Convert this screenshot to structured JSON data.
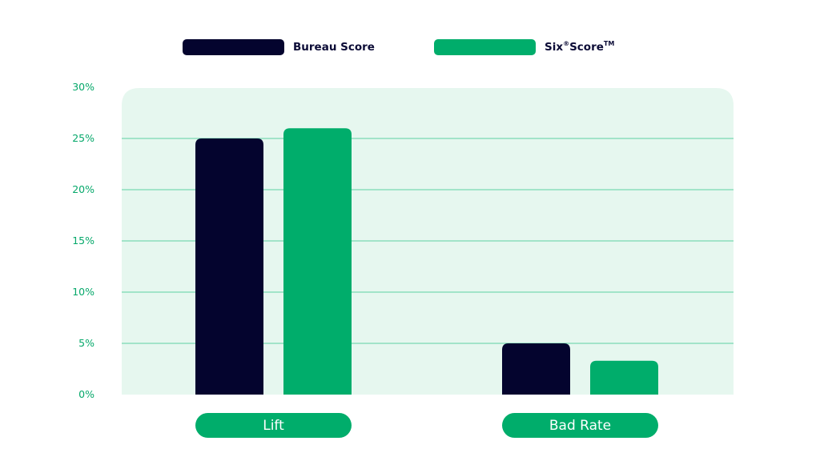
{
  "colors": {
    "series_dark": "#04042e",
    "series_green": "#00ad6b",
    "plot_background": "#e6f7ef",
    "grid": "#2fc48a",
    "tick_text": "#05a86a",
    "category_pill": "#00ad6b"
  },
  "chart_data": {
    "type": "bar",
    "categories": [
      "Lift",
      "Bad Rate"
    ],
    "series": [
      {
        "name": "Bureau Score",
        "values": [
          25,
          5
        ]
      },
      {
        "name": "Six",
        "values": [
          26,
          3.3
        ]
      }
    ],
    "legend_extra": {
      "registered_mark": "®",
      "score_text": "Score",
      "trademark": "TM"
    },
    "y_ticks": [
      "0%",
      "5%",
      "10%",
      "15%",
      "20%",
      "25%",
      "30%"
    ],
    "y_tick_values": [
      0,
      5,
      10,
      15,
      20,
      25,
      30
    ],
    "ylim": [
      0,
      30
    ],
    "grid": true,
    "legend_position": "top-center"
  }
}
